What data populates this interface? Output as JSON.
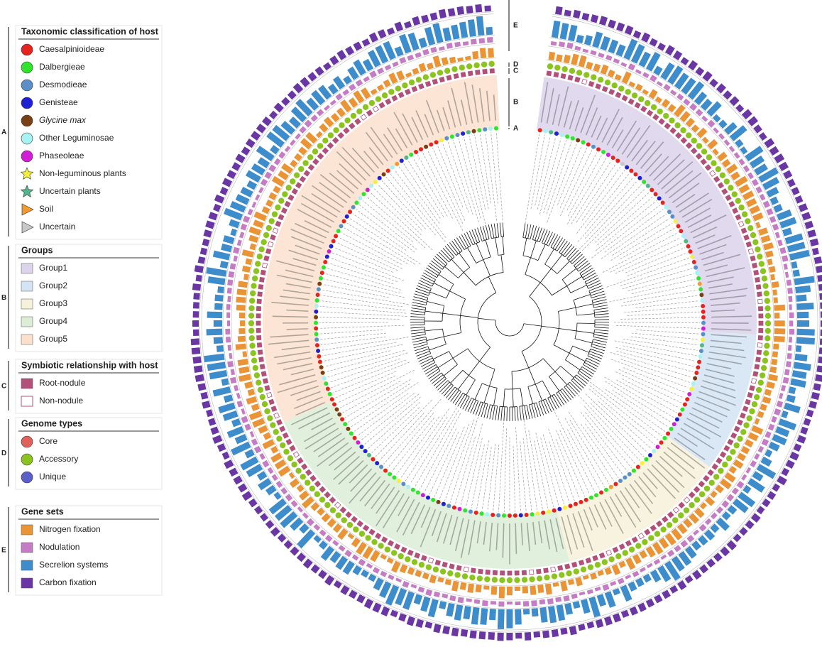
{
  "legend": [
    {
      "letter": "A",
      "title": "Taxonomic classification of host",
      "items": [
        {
          "label": "Caesalpinioideae",
          "shape": "circle",
          "color": "#e8221c"
        },
        {
          "label": "Dalbergieae",
          "shape": "circle",
          "color": "#2ee52b"
        },
        {
          "label": "Desmodieae",
          "shape": "circle",
          "color": "#5b8fc7"
        },
        {
          "label": "Genisteae",
          "shape": "circle",
          "color": "#1f1fd6"
        },
        {
          "label": "Glycine max",
          "shape": "circle",
          "color": "#7a3f12",
          "italic": true
        },
        {
          "label": "Other Leguminosae",
          "shape": "circle",
          "color": "#a7f2f2"
        },
        {
          "label": "Phaseoleae",
          "shape": "circle",
          "color": "#d21fd6"
        },
        {
          "label": "Non-leguminous plants",
          "shape": "star",
          "color": "#f5f03a"
        },
        {
          "label": "Uncertain plants",
          "shape": "star",
          "color": "#4fb78a"
        },
        {
          "label": "Soil",
          "shape": "triangle",
          "color": "#f29a2e"
        },
        {
          "label": "Uncertain",
          "shape": "triangle",
          "color": "#c8c8c8"
        }
      ]
    },
    {
      "letter": "B",
      "title": "Groups",
      "items": [
        {
          "label": "Group1",
          "shape": "square",
          "color": "#dcd4ec"
        },
        {
          "label": "Group2",
          "shape": "square",
          "color": "#d4e4f4"
        },
        {
          "label": "Group3",
          "shape": "square",
          "color": "#f6f1d8"
        },
        {
          "label": "Group4",
          "shape": "square",
          "color": "#dcedd6"
        },
        {
          "label": "Group5",
          "shape": "square",
          "color": "#fbe1cc"
        }
      ]
    },
    {
      "letter": "C",
      "title": "Symbiotic relationship with host",
      "items": [
        {
          "label": "Root-nodule",
          "shape": "square",
          "color": "#b3507a"
        },
        {
          "label": "Non-nodule",
          "shape": "open-square",
          "color": "#b3507a"
        }
      ]
    },
    {
      "letter": "D",
      "title": "Genome types",
      "items": [
        {
          "label": "Core",
          "shape": "circle",
          "color": "#e0605a"
        },
        {
          "label": "Accessory",
          "shape": "circle",
          "color": "#8bc41e"
        },
        {
          "label": "Unique",
          "shape": "circle",
          "color": "#5a5fcc"
        }
      ]
    },
    {
      "letter": "E",
      "title": "Gene sets",
      "items": [
        {
          "label": "Nitrogen fixation",
          "shape": "square",
          "color": "#ea9435"
        },
        {
          "label": "Nodulation",
          "shape": "square",
          "color": "#c67cc4"
        },
        {
          "label": "Secrelion systems",
          "shape": "square",
          "color": "#3d8ccb"
        },
        {
          "label": "Carbon fixation",
          "shape": "square",
          "color": "#6a36a4"
        }
      ]
    }
  ],
  "ring_labels": [
    "E",
    "D",
    "C",
    "B",
    "A"
  ]
}
